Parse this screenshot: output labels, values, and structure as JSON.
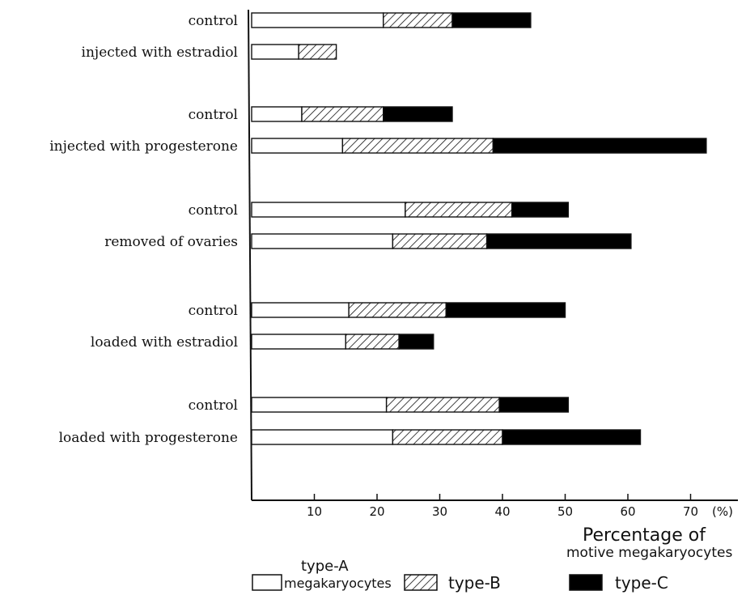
{
  "chart_data": {
    "type": "bar",
    "orientation": "horizontal",
    "stacked": true,
    "categories": [
      "control",
      "injected with estradiol",
      "control",
      "injected with progesterone",
      "control",
      "removed of ovaries",
      "control",
      "loaded with estradiol",
      "control",
      "loaded with progesterone"
    ],
    "series": [
      {
        "name": "type-A megakaryocytes",
        "values": [
          21,
          7.5,
          8,
          14.5,
          24.5,
          22.5,
          15.5,
          15,
          21.5,
          22.5
        ]
      },
      {
        "name": "type-B",
        "values": [
          11,
          6,
          13,
          24,
          17,
          15,
          15.5,
          8.5,
          18,
          17.5
        ]
      },
      {
        "name": "type-C",
        "values": [
          12.5,
          0,
          11,
          34,
          9,
          23,
          19,
          5.5,
          11,
          22
        ]
      }
    ],
    "xlabel_line1": "Percentage of",
    "xlabel_line2": "motive megakaryocytes",
    "x_unit": "(%)",
    "xticks": [
      10,
      20,
      30,
      40,
      50,
      60,
      70
    ],
    "xlim": [
      0,
      75
    ],
    "grid": false,
    "legend": {
      "placement": "bottom",
      "type_a_line1": "type-A",
      "type_a_line2": "megakaryocytes",
      "type_b": "type-B",
      "type_c": "type-C"
    },
    "colors": {
      "type-A": "#ffffff",
      "type-B": "hatched",
      "type-C": "#000000"
    }
  }
}
